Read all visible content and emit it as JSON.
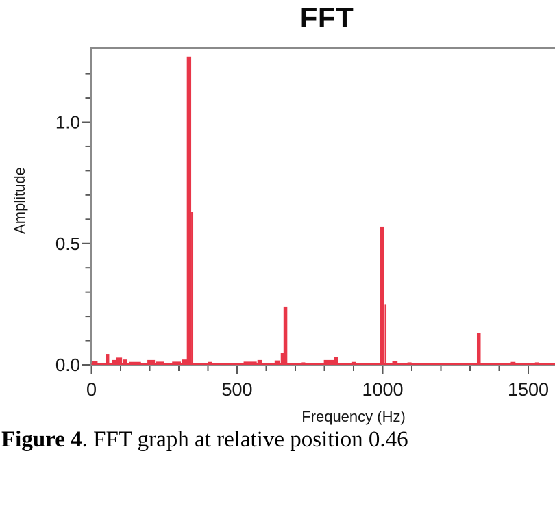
{
  "caption": {
    "bold": "Figure 4",
    "rest": ". FFT graph at relative position 0.46"
  },
  "chart_data": {
    "type": "bar",
    "title": "FFT",
    "xlabel": "Frequency (Hz)",
    "ylabel": "Amplitude",
    "xlim": [
      0,
      1592
    ],
    "ylim": [
      0,
      1.31
    ],
    "grid": false,
    "legend": "none",
    "x_major_ticks": [
      0,
      500,
      1000,
      1500
    ],
    "x_tick_labels": [
      "0",
      "500",
      "1000",
      "1500"
    ],
    "x_minor_step": 100,
    "y_major_ticks": [
      0,
      0.5,
      1.0
    ],
    "y_tick_labels": [
      "0.0",
      "0.5",
      "1.0"
    ],
    "y_minor_step": 0.1,
    "bar_color": "#e83648",
    "axis_color": "#8a8a8a",
    "tick_color": "#5a5a5a",
    "label_color": "#161616",
    "baseline_amplitude": 0.008,
    "peaks": [
      {
        "frequency_hz": 335,
        "amplitude": 1.27,
        "width_hz": 15
      },
      {
        "frequency_hz": 346,
        "amplitude": 0.63,
        "width_hz": 7
      },
      {
        "frequency_hz": 655,
        "amplitude": 0.05,
        "width_hz": 10
      },
      {
        "frequency_hz": 666,
        "amplitude": 0.24,
        "width_hz": 13
      },
      {
        "frequency_hz": 998,
        "amplitude": 0.57,
        "width_hz": 14
      },
      {
        "frequency_hz": 1010,
        "amplitude": 0.25,
        "width_hz": 6
      },
      {
        "frequency_hz": 1330,
        "amplitude": 0.13,
        "width_hz": 13
      }
    ],
    "noise": [
      {
        "frequency_hz": 12,
        "amplitude": 0.015,
        "width_hz": 18
      },
      {
        "frequency_hz": 55,
        "amplitude": 0.045,
        "width_hz": 12
      },
      {
        "frequency_hz": 78,
        "amplitude": 0.02,
        "width_hz": 14
      },
      {
        "frequency_hz": 95,
        "amplitude": 0.03,
        "width_hz": 20
      },
      {
        "frequency_hz": 115,
        "amplitude": 0.022,
        "width_hz": 16
      },
      {
        "frequency_hz": 150,
        "amplitude": 0.012,
        "width_hz": 40
      },
      {
        "frequency_hz": 205,
        "amplitude": 0.02,
        "width_hz": 26
      },
      {
        "frequency_hz": 235,
        "amplitude": 0.013,
        "width_hz": 28
      },
      {
        "frequency_hz": 292,
        "amplitude": 0.013,
        "width_hz": 30
      },
      {
        "frequency_hz": 320,
        "amplitude": 0.022,
        "width_hz": 20
      },
      {
        "frequency_hz": 408,
        "amplitude": 0.012,
        "width_hz": 14
      },
      {
        "frequency_hz": 545,
        "amplitude": 0.013,
        "width_hz": 45
      },
      {
        "frequency_hz": 578,
        "amplitude": 0.02,
        "width_hz": 16
      },
      {
        "frequency_hz": 638,
        "amplitude": 0.018,
        "width_hz": 18
      },
      {
        "frequency_hz": 728,
        "amplitude": 0.01,
        "width_hz": 12
      },
      {
        "frequency_hz": 818,
        "amplitude": 0.02,
        "width_hz": 40
      },
      {
        "frequency_hz": 840,
        "amplitude": 0.032,
        "width_hz": 16
      },
      {
        "frequency_hz": 902,
        "amplitude": 0.012,
        "width_hz": 14
      },
      {
        "frequency_hz": 1042,
        "amplitude": 0.015,
        "width_hz": 18
      },
      {
        "frequency_hz": 1092,
        "amplitude": 0.01,
        "width_hz": 14
      },
      {
        "frequency_hz": 1448,
        "amplitude": 0.012,
        "width_hz": 16
      },
      {
        "frequency_hz": 1530,
        "amplitude": 0.01,
        "width_hz": 14
      }
    ]
  }
}
